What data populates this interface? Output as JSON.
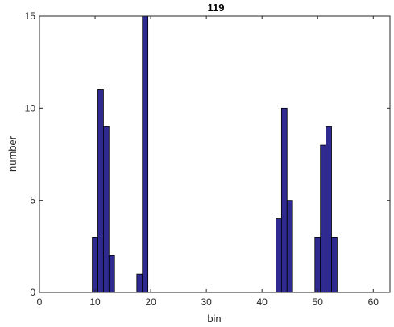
{
  "chart_data": {
    "type": "bar",
    "title": "119",
    "xlabel": "bin",
    "ylabel": "number",
    "xlim": [
      0,
      63
    ],
    "ylim": [
      0,
      15
    ],
    "xticks": [
      "0",
      "10",
      "20",
      "30",
      "40",
      "50",
      "60"
    ],
    "yticks": [
      "0",
      "5",
      "10",
      "15"
    ],
    "bar_color": "#2e2a8f",
    "bar_edge_color": "#000000",
    "grid": false,
    "bins": [
      {
        "x": 10,
        "value": 3
      },
      {
        "x": 11,
        "value": 11
      },
      {
        "x": 12,
        "value": 9
      },
      {
        "x": 13,
        "value": 2
      },
      {
        "x": 18,
        "value": 1
      },
      {
        "x": 19,
        "value": 15
      },
      {
        "x": 43,
        "value": 4
      },
      {
        "x": 44,
        "value": 10
      },
      {
        "x": 45,
        "value": 5
      },
      {
        "x": 50,
        "value": 3
      },
      {
        "x": 51,
        "value": 8
      },
      {
        "x": 52,
        "value": 9
      },
      {
        "x": 53,
        "value": 3
      }
    ]
  }
}
